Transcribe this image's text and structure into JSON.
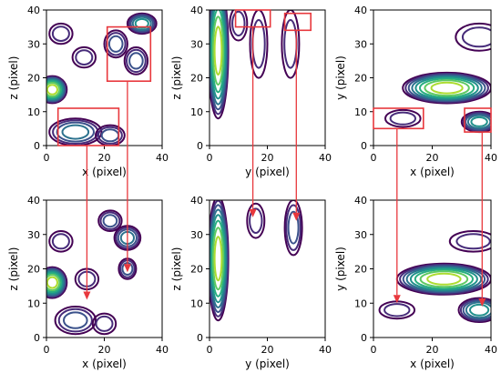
{
  "chart_data": {
    "type": "contour",
    "layout": "2x3 grid",
    "grid": false,
    "colormap": "viridis",
    "colors": [
      "#440154",
      "#472c7a",
      "#3b528b",
      "#2c728e",
      "#21918c",
      "#28ae80",
      "#5ec962",
      "#addc30",
      "#fde725"
    ],
    "annotation_color": "#e8383d",
    "panels": [
      {
        "row": 0,
        "col": 0,
        "xlabel": "x (pixel)",
        "ylabel": "z (pixel)",
        "xlim": [
          0,
          40
        ],
        "ylim": [
          0,
          40
        ],
        "xticks": [
          "0",
          "20",
          "40"
        ],
        "yticks": [
          "0",
          "10",
          "20",
          "30",
          "40"
        ],
        "blobs": [
          {
            "cx": 2,
            "cy": 16.5,
            "rx": 5,
            "ry": 4,
            "peak": 8
          },
          {
            "cx": 10,
            "cy": 4,
            "rx": 9,
            "ry": 4,
            "peak": 4
          },
          {
            "cx": 22,
            "cy": 3,
            "rx": 5,
            "ry": 3,
            "peak": 3
          },
          {
            "cx": 33,
            "cy": 36,
            "rx": 5,
            "ry": 3,
            "peak": 5
          },
          {
            "cx": 24,
            "cy": 30,
            "rx": 4,
            "ry": 4,
            "peak": 3
          },
          {
            "cx": 31,
            "cy": 25,
            "rx": 4,
            "ry": 4,
            "peak": 3
          },
          {
            "cx": 13,
            "cy": 26,
            "rx": 4,
            "ry": 3,
            "peak": 2
          },
          {
            "cx": 5,
            "cy": 33,
            "rx": 4,
            "ry": 3,
            "peak": 2
          }
        ],
        "boxes": [
          [
            4,
            0,
            25,
            11
          ],
          [
            21,
            19,
            36,
            35
          ]
        ]
      },
      {
        "row": 0,
        "col": 1,
        "xlabel": "y (pixel)",
        "ylabel": "z (pixel)",
        "xlim": [
          0,
          40
        ],
        "ylim": [
          0,
          40
        ],
        "xticks": [
          "0",
          "20",
          "40"
        ],
        "yticks": [
          "0",
          "10",
          "20",
          "30",
          "40"
        ],
        "blobs": [
          {
            "cx": 3,
            "cy": 28,
            "rx": 3.5,
            "ry": 20,
            "peak": 8
          },
          {
            "cx": 10,
            "cy": 36,
            "rx": 3,
            "ry": 5,
            "peak": 2
          },
          {
            "cx": 17,
            "cy": 30,
            "rx": 3,
            "ry": 10,
            "peak": 2
          },
          {
            "cx": 28,
            "cy": 30,
            "rx": 3,
            "ry": 10,
            "peak": 2
          }
        ],
        "boxes": [
          [
            9,
            35,
            21,
            40
          ],
          [
            26,
            34,
            35,
            39
          ]
        ]
      },
      {
        "row": 0,
        "col": 2,
        "xlabel": "x (pixel)",
        "ylabel": "y (pixel)",
        "xlim": [
          0,
          40
        ],
        "ylim": [
          0,
          40
        ],
        "xticks": [
          "0",
          "20",
          "40"
        ],
        "yticks": [
          "0",
          "10",
          "20",
          "30",
          "40"
        ],
        "blobs": [
          {
            "cx": 25,
            "cy": 17,
            "rx": 15,
            "ry": 4.5,
            "peak": 8
          },
          {
            "cx": 36,
            "cy": 7,
            "rx": 6,
            "ry": 3,
            "peak": 5
          },
          {
            "cx": 10,
            "cy": 8,
            "rx": 6,
            "ry": 2.5,
            "peak": 2
          },
          {
            "cx": 36,
            "cy": 32,
            "rx": 8,
            "ry": 4,
            "peak": 2
          }
        ],
        "boxes": [
          [
            0,
            5,
            17,
            11
          ],
          [
            31,
            4,
            40,
            11
          ]
        ]
      },
      {
        "row": 1,
        "col": 0,
        "xlabel": "x (pixel)",
        "ylabel": "z (pixel)",
        "xlim": [
          0,
          40
        ],
        "ylim": [
          0,
          40
        ],
        "xticks": [
          "0",
          "20",
          "40"
        ],
        "yticks": [
          "0",
          "10",
          "20",
          "30",
          "40"
        ],
        "blobs": [
          {
            "cx": 2,
            "cy": 16,
            "rx": 5,
            "ry": 4.5,
            "peak": 8
          },
          {
            "cx": 28,
            "cy": 29,
            "rx": 4.5,
            "ry": 3.5,
            "peak": 4
          },
          {
            "cx": 22,
            "cy": 34,
            "rx": 4,
            "ry": 3,
            "peak": 3
          },
          {
            "cx": 28,
            "cy": 20,
            "rx": 3,
            "ry": 3,
            "peak": 3
          },
          {
            "cx": 10,
            "cy": 5,
            "rx": 7,
            "ry": 4,
            "peak": 3
          },
          {
            "cx": 20,
            "cy": 4,
            "rx": 4,
            "ry": 3,
            "peak": 2
          },
          {
            "cx": 14,
            "cy": 17,
            "rx": 4,
            "ry": 3,
            "peak": 2
          },
          {
            "cx": 5,
            "cy": 28,
            "rx": 4,
            "ry": 3,
            "peak": 2
          }
        ],
        "boxes": []
      },
      {
        "row": 1,
        "col": 1,
        "xlabel": "y (pixel)",
        "ylabel": "z (pixel)",
        "xlim": [
          0,
          40
        ],
        "ylim": [
          0,
          40
        ],
        "xticks": [
          "0",
          "20",
          "40"
        ],
        "yticks": [
          "0",
          "10",
          "20",
          "30",
          "40"
        ],
        "blobs": [
          {
            "cx": 3,
            "cy": 23,
            "rx": 3.5,
            "ry": 18,
            "peak": 8
          },
          {
            "cx": 16,
            "cy": 34,
            "rx": 3,
            "ry": 5,
            "peak": 2
          },
          {
            "cx": 29,
            "cy": 32,
            "rx": 3,
            "ry": 8,
            "peak": 3
          }
        ],
        "boxes": []
      },
      {
        "row": 1,
        "col": 2,
        "xlabel": "x (pixel)",
        "ylabel": "y (pixel)",
        "xlim": [
          0,
          40
        ],
        "ylim": [
          0,
          40
        ],
        "xticks": [
          "0",
          "20",
          "40"
        ],
        "yticks": [
          "0",
          "10",
          "20",
          "30",
          "40"
        ],
        "blobs": [
          {
            "cx": 24,
            "cy": 17,
            "rx": 16,
            "ry": 4.5,
            "peak": 8
          },
          {
            "cx": 36,
            "cy": 8,
            "rx": 7,
            "ry": 3.5,
            "peak": 5
          },
          {
            "cx": 8,
            "cy": 8,
            "rx": 6,
            "ry": 2.5,
            "peak": 2
          },
          {
            "cx": 34,
            "cy": 28,
            "rx": 8,
            "ry": 3,
            "peak": 2
          }
        ],
        "boxes": []
      }
    ],
    "arrows": [
      {
        "from_panel": 0,
        "from": [
          14,
          0
        ],
        "to_panel": 3,
        "to": [
          14,
          11
        ]
      },
      {
        "from_panel": 0,
        "from": [
          28,
          19
        ],
        "to_panel": 3,
        "to": [
          28,
          19
        ]
      },
      {
        "from_panel": 1,
        "from": [
          15,
          35
        ],
        "to_panel": 4,
        "to": [
          15,
          35
        ]
      },
      {
        "from_panel": 1,
        "from": [
          30,
          34
        ],
        "to_panel": 4,
        "to": [
          30,
          34
        ]
      },
      {
        "from_panel": 2,
        "from": [
          8,
          5
        ],
        "to_panel": 5,
        "to": [
          8,
          10
        ]
      },
      {
        "from_panel": 2,
        "from": [
          37,
          4
        ],
        "to_panel": 5,
        "to": [
          37,
          9
        ]
      }
    ]
  }
}
